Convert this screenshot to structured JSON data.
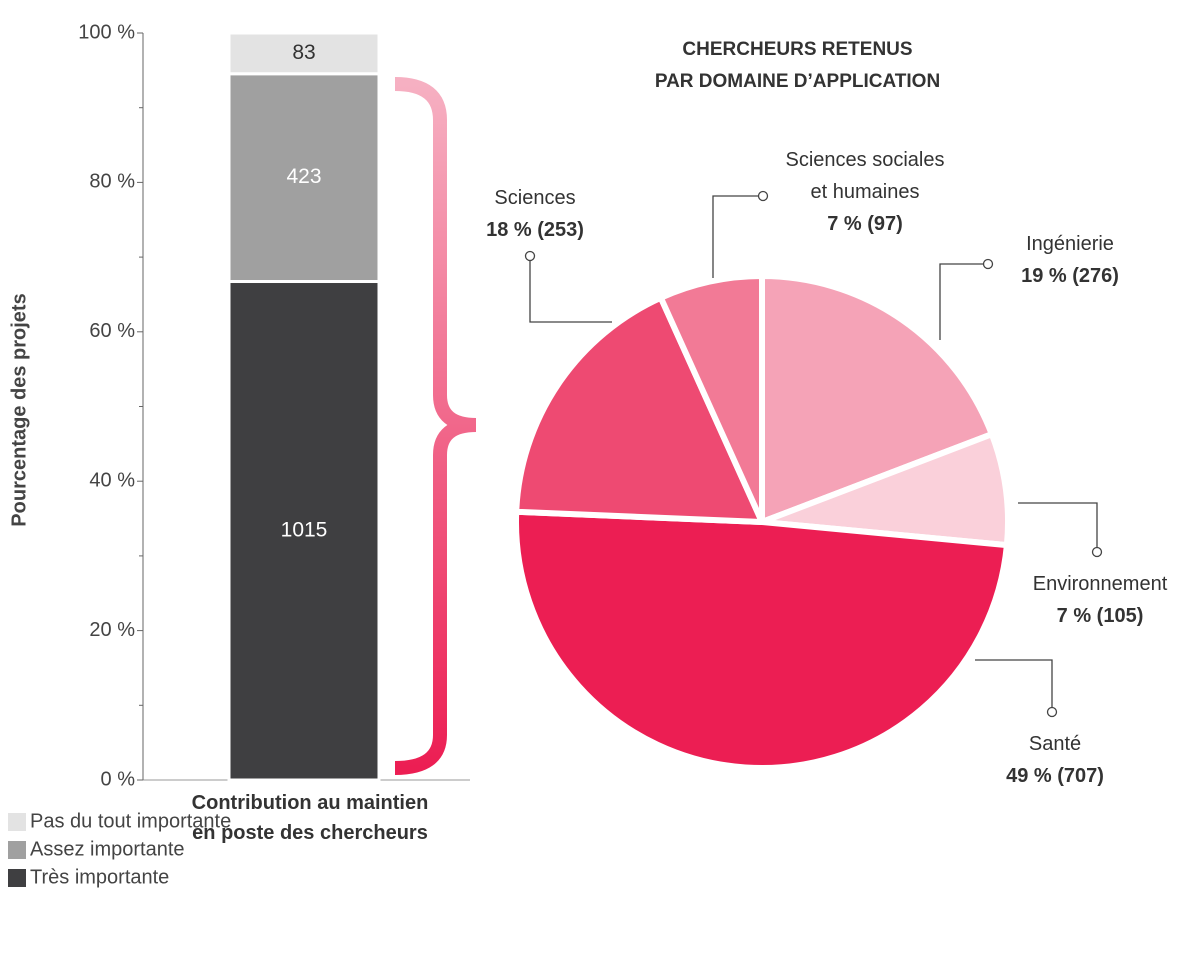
{
  "chart_data": [
    {
      "type": "stacked_bar",
      "stacking": "percent",
      "ylabel": "Pourcentage des projets",
      "categories": [
        "Contribution au maintien\nen poste des chercheurs"
      ],
      "series": [
        {
          "name": "Très importante",
          "color": "#3f3f41",
          "values": [
            1015
          ]
        },
        {
          "name": "Assez importante",
          "color": "#a0a0a0",
          "values": [
            423
          ]
        },
        {
          "name": "Pas du tout importante",
          "color": "#e3e3e3",
          "values": [
            83
          ]
        }
      ],
      "ylim": [
        0,
        100
      ],
      "yticks": [
        {
          "value": 0,
          "label": "0 %"
        },
        {
          "value": 20,
          "label": "20 %"
        },
        {
          "value": 40,
          "label": "40 %"
        },
        {
          "value": 60,
          "label": "60 %"
        },
        {
          "value": 80,
          "label": "80 %"
        },
        {
          "value": 100,
          "label": "100 %"
        }
      ],
      "yminor_ticks": [
        10,
        30,
        50,
        70,
        90
      ]
    },
    {
      "type": "pie",
      "title": "CHERCHEURS RETENUS\nPAR DOMAINE D’APPLICATION",
      "categories": [
        "Ingénierie",
        "Environnement",
        "Santé",
        "Sciences",
        "Sciences sociales\net humaines"
      ],
      "values": [
        276,
        105,
        707,
        253,
        97
      ],
      "value_labels": [
        "19 % (276)",
        "7 % (105)",
        "49 % (707)",
        "18 % (253)",
        "7 % (97)"
      ],
      "colors": [
        "#f5a3b7",
        "#fad0da",
        "#ec1e53",
        "#ee4a72",
        "#f27a96"
      ]
    }
  ]
}
